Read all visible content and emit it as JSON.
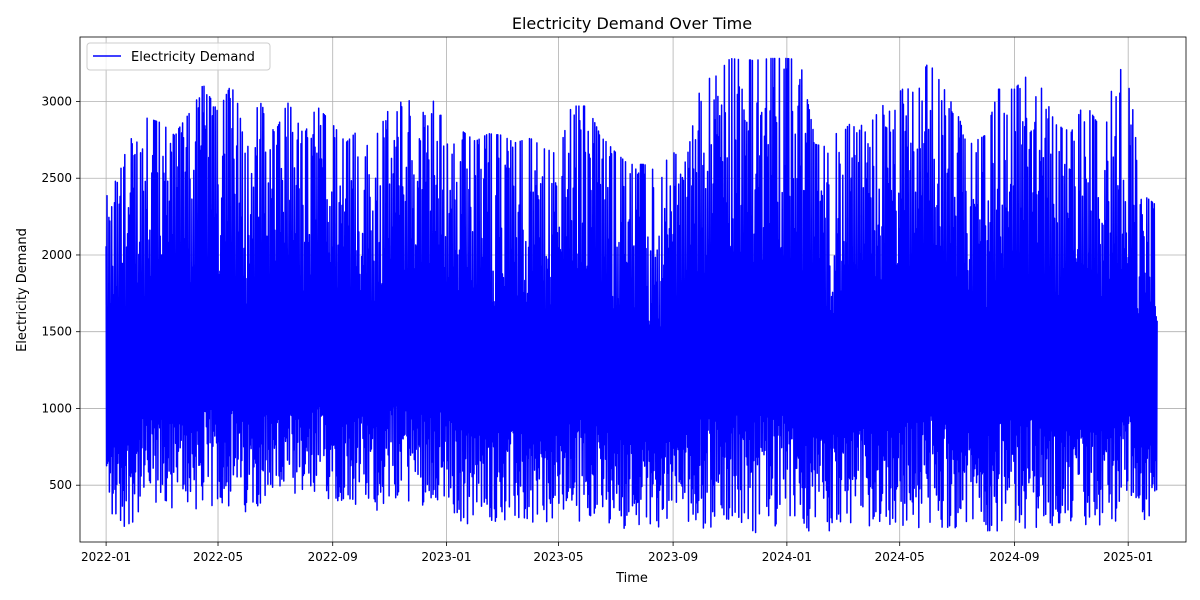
{
  "chart_data": {
    "type": "line",
    "title": "Electricity Demand Over Time",
    "xlabel": "Time",
    "ylabel": "Electricity Demand",
    "xlim": [
      "2021-12-04",
      "2025-03-04"
    ],
    "ylim": [
      130,
      3420
    ],
    "x_ticks": [
      {
        "date": "2022-01-01",
        "label": "2022-01"
      },
      {
        "date": "2022-05-01",
        "label": "2022-05"
      },
      {
        "date": "2022-09-01",
        "label": "2022-09"
      },
      {
        "date": "2023-01-01",
        "label": "2023-01"
      },
      {
        "date": "2023-05-01",
        "label": "2023-05"
      },
      {
        "date": "2023-09-01",
        "label": "2023-09"
      },
      {
        "date": "2024-01-01",
        "label": "2024-01"
      },
      {
        "date": "2024-05-01",
        "label": "2024-05"
      },
      {
        "date": "2024-09-01",
        "label": "2024-09"
      },
      {
        "date": "2025-01-01",
        "label": "2025-01"
      }
    ],
    "y_ticks": [
      500,
      1000,
      1500,
      2000,
      2500,
      3000
    ],
    "grid": true,
    "legend": {
      "placement": "top-left",
      "entries": [
        "Electricity Demand"
      ]
    },
    "series": [
      {
        "name": "Electricity Demand",
        "color": "#0000ff",
        "sampling": "daily min/max envelope",
        "x": [
          "2022-01-01",
          "2022-01-15",
          "2022-02-01",
          "2022-02-15",
          "2022-03-01",
          "2022-03-15",
          "2022-04-01",
          "2022-04-15",
          "2022-05-01",
          "2022-05-15",
          "2022-06-01",
          "2022-06-15",
          "2022-07-01",
          "2022-07-15",
          "2022-08-01",
          "2022-08-15",
          "2022-09-01",
          "2022-09-15",
          "2022-10-01",
          "2022-10-15",
          "2022-11-01",
          "2022-11-15",
          "2022-12-01",
          "2022-12-15",
          "2023-01-01",
          "2023-01-15",
          "2023-02-01",
          "2023-02-15",
          "2023-03-01",
          "2023-03-15",
          "2023-04-01",
          "2023-04-15",
          "2023-05-01",
          "2023-05-15",
          "2023-06-01",
          "2023-06-15",
          "2023-07-01",
          "2023-07-15",
          "2023-08-01",
          "2023-08-15",
          "2023-09-01",
          "2023-09-15",
          "2023-10-01",
          "2023-10-15",
          "2023-11-01",
          "2023-11-15",
          "2023-12-01",
          "2023-12-15",
          "2024-01-01",
          "2024-01-15",
          "2024-02-01",
          "2024-02-15",
          "2024-03-01",
          "2024-03-15",
          "2024-04-01",
          "2024-04-15",
          "2024-05-01",
          "2024-05-15",
          "2024-06-01",
          "2024-06-15",
          "2024-07-01",
          "2024-07-15",
          "2024-08-01",
          "2024-08-15",
          "2024-09-01",
          "2024-09-15",
          "2024-10-01",
          "2024-10-15",
          "2024-11-01",
          "2024-11-15",
          "2024-12-01",
          "2024-12-15",
          "2025-01-01",
          "2025-01-15",
          "2025-02-01"
        ],
        "max": [
          2380,
          2520,
          2900,
          2890,
          2860,
          2780,
          2930,
          3110,
          2930,
          3110,
          2810,
          3000,
          2790,
          3000,
          2780,
          2970,
          2850,
          2730,
          2830,
          2740,
          2960,
          3000,
          3010,
          3010,
          2960,
          2820,
          2740,
          2790,
          2780,
          2730,
          2760,
          2700,
          2650,
          2970,
          2970,
          2780,
          2670,
          2590,
          2590,
          2540,
          2670,
          2600,
          3150,
          3150,
          3280,
          3270,
          3270,
          3280,
          3280,
          3270,
          2720,
          2700,
          2870,
          2830,
          2870,
          2990,
          3120,
          3060,
          3260,
          3110,
          2930,
          2720,
          2780,
          3080,
          3080,
          3170,
          3080,
          2850,
          2800,
          3000,
          2840,
          3160,
          3250,
          2400,
          2320
        ],
        "min": [
          300,
          200,
          260,
          300,
          310,
          330,
          340,
          290,
          360,
          330,
          280,
          380,
          400,
          330,
          300,
          390,
          400,
          380,
          350,
          310,
          380,
          400,
          350,
          400,
          300,
          250,
          240,
          260,
          250,
          230,
          240,
          220,
          220,
          250,
          280,
          260,
          230,
          210,
          230,
          220,
          240,
          260,
          200,
          210,
          210,
          200,
          190,
          190,
          180,
          200,
          190,
          200,
          210,
          210,
          220,
          230,
          210,
          220,
          200,
          200,
          220,
          210,
          200,
          200,
          220,
          210,
          220,
          220,
          210,
          200,
          210,
          210,
          220,
          250,
          260
        ]
      }
    ]
  }
}
